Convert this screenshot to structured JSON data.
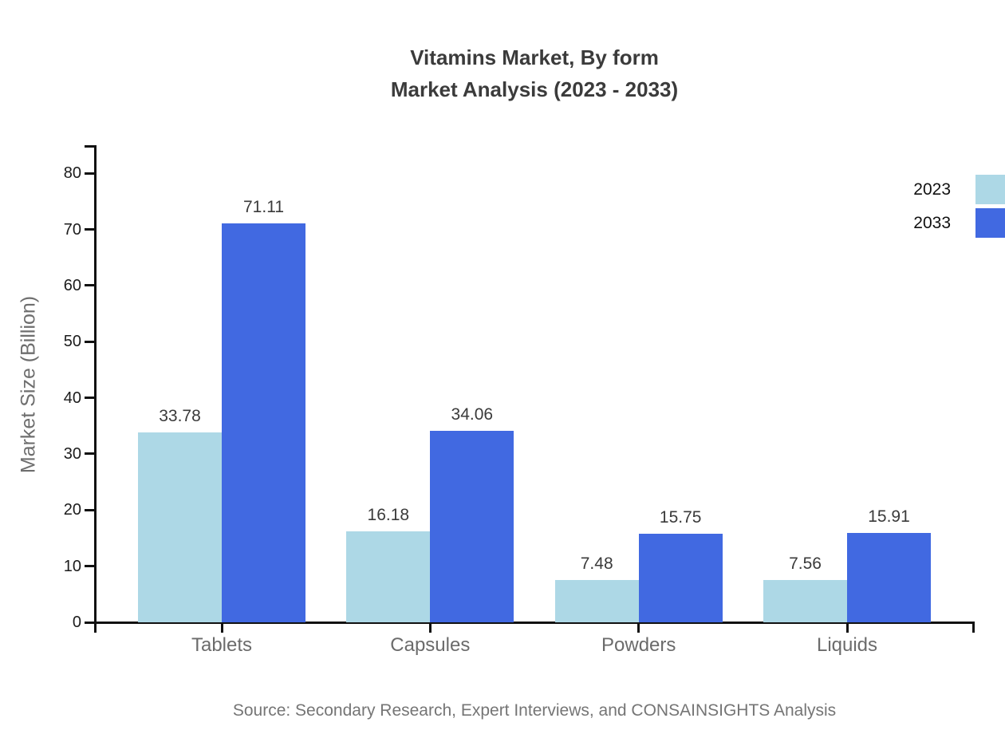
{
  "title": {
    "line1": "Vitamins Market, By form",
    "line2": "Market Analysis (2023 - 2033)"
  },
  "source_note": "Source: Secondary Research, Expert Interviews, and CONSAINSIGHTS Analysis",
  "chart_data": {
    "type": "bar",
    "title": "Vitamins Market, By form Market Analysis (2023 - 2033)",
    "categories": [
      "Tablets",
      "Capsules",
      "Powders",
      "Liquids"
    ],
    "series": [
      {
        "name": "2023",
        "color": "#ADD8E6",
        "values": [
          33.78,
          16.18,
          7.48,
          7.56
        ]
      },
      {
        "name": "2033",
        "color": "#4169E1",
        "values": [
          71.11,
          34.06,
          15.75,
          15.91
        ]
      }
    ],
    "xlabel": "",
    "ylabel": "Market Size (Billion)",
    "ylim": [
      0,
      85
    ],
    "yticks": [
      0,
      10,
      20,
      30,
      40,
      50,
      60,
      70,
      80
    ],
    "grid": false,
    "legend_position": "upper-right",
    "value_labels": true
  }
}
